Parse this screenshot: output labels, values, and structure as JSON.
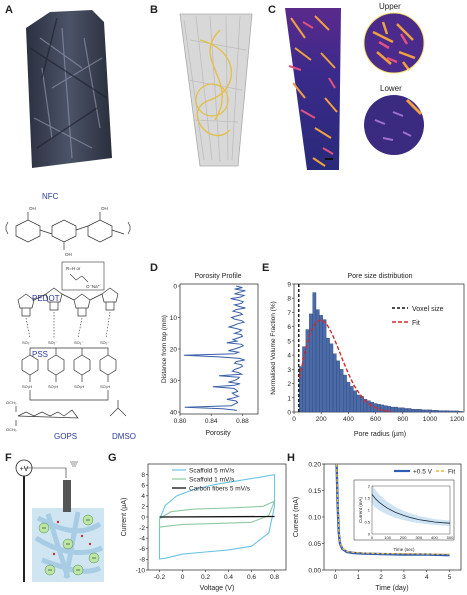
{
  "panels": {
    "A": "A",
    "B": "B",
    "C": "C",
    "D": "D",
    "E": "E",
    "F": "F",
    "G": "G",
    "H": "H"
  },
  "panel_c": {
    "upper_label": "Upper",
    "lower_label": "Lower"
  },
  "chemistry": {
    "nfc": "NFC",
    "pedot": "PEDOT",
    "pss": "PSS",
    "gops": "GOPS",
    "dmso": "DMSO",
    "side_group": "R=H or",
    "oh": "OH",
    "ona": "O⁻Na⁺",
    "so3h": "SO₃H",
    "so3": "SO₃⁻",
    "och3": "OCH₃"
  },
  "colors": {
    "label_blue": "#2a3a9a",
    "bar_blue": "#4a6aa8",
    "fit_red": "#d42a2a",
    "cv_light": "#6cc3e6",
    "cv_green": "#8fc9a3",
    "h_line": "#2d5eb5",
    "h_fit": "#f0b43a"
  },
  "icons": [
    "voltmeter-icon",
    "ground-electrode-icon",
    "ion-icon"
  ],
  "electrode": {
    "voltage_label": "+V"
  },
  "chart_data": [
    {
      "id": "D",
      "type": "line",
      "title": "Porosity Profile",
      "xlabel": "Porosity",
      "ylabel": "Distance from top (mm)",
      "xlim": [
        0.8,
        0.9
      ],
      "ylim": [
        40,
        0
      ],
      "xticks": [
        "0.80",
        "0.84",
        "0.88"
      ],
      "yticks": [
        "0",
        "10",
        "20",
        "30",
        "40"
      ],
      "x": [
        0.872,
        0.88,
        0.87,
        0.884,
        0.876,
        0.87,
        0.882,
        0.878,
        0.865,
        0.875,
        0.881,
        0.879,
        0.87,
        0.876,
        0.884,
        0.872,
        0.868,
        0.877,
        0.88,
        0.873,
        0.866,
        0.87,
        0.879,
        0.882,
        0.874,
        0.869,
        0.863,
        0.872,
        0.879,
        0.876,
        0.87,
        0.879,
        0.88,
        0.874,
        0.868,
        0.873,
        0.86,
        0.879,
        0.881,
        0.876,
        0.87,
        0.862,
        0.875,
        0.87,
        0.805,
        0.85,
        0.876,
        0.883,
        0.872,
        0.87,
        0.879,
        0.88,
        0.876,
        0.87,
        0.867,
        0.875,
        0.879,
        0.85,
        0.876,
        0.874,
        0.87,
        0.862,
        0.877,
        0.87,
        0.842,
        0.869,
        0.872,
        0.874,
        0.867,
        0.87,
        0.875,
        0.869,
        0.86,
        0.872,
        0.874,
        0.87,
        0.866,
        0.806,
        0.855,
        0.873
      ],
      "y": [
        0,
        0.5,
        1,
        1.5,
        2,
        2.5,
        3,
        3.5,
        4,
        4.5,
        5,
        5.5,
        6,
        6.5,
        7,
        7.5,
        8,
        8.5,
        9,
        9.5,
        10,
        10.5,
        11,
        11.5,
        12,
        12.5,
        13,
        13.5,
        14,
        14.5,
        15,
        15.5,
        16,
        16.5,
        17,
        17.5,
        18,
        18.5,
        19,
        19.5,
        20,
        20.5,
        21,
        21.5,
        22,
        22.5,
        23,
        23.5,
        24,
        24.5,
        25,
        25.5,
        26,
        26.5,
        27,
        27.5,
        28,
        28.5,
        29,
        29.5,
        30,
        30.5,
        31,
        31.5,
        32,
        32.5,
        33,
        33.5,
        34,
        34.5,
        35,
        35.5,
        36,
        36.5,
        37,
        37.5,
        38,
        38.5,
        39,
        39.5
      ]
    },
    {
      "id": "E",
      "type": "bar",
      "title": "Pore size distribution",
      "xlabel": "Pore radius (µm)",
      "ylabel": "Normalised Volume Fraction (%)",
      "xlim": [
        0,
        1250
      ],
      "ylim": [
        0,
        9
      ],
      "xticks": [
        "0",
        "200",
        "400",
        "600",
        "800",
        "1000",
        "1200"
      ],
      "yticks": [
        "0",
        "1",
        "2",
        "3",
        "4",
        "5",
        "6",
        "7",
        "8",
        "9"
      ],
      "legend": [
        "Voxel size",
        "Fit"
      ],
      "voxel_size": 35,
      "bin_width": 25,
      "bin_starts": [
        37,
        62,
        87,
        112,
        137,
        162,
        187,
        212,
        237,
        262,
        287,
        312,
        337,
        362,
        387,
        412,
        437,
        462,
        487,
        512,
        537,
        562,
        587,
        612,
        637,
        662,
        687,
        712,
        737,
        762,
        787,
        812,
        837,
        862,
        887,
        912,
        937,
        962,
        987,
        1012,
        1037,
        1062,
        1087,
        1112,
        1137,
        1162,
        1187,
        1212
      ],
      "values": [
        3.2,
        4.6,
        5.8,
        6.9,
        8.4,
        7.2,
        6.8,
        6.5,
        5.2,
        4.8,
        4.1,
        3.6,
        3.0,
        2.6,
        2.1,
        1.8,
        1.5,
        1.2,
        1.1,
        0.9,
        0.8,
        0.7,
        0.6,
        0.55,
        0.5,
        0.45,
        0.4,
        0.35,
        0.35,
        0.3,
        0.3,
        0.25,
        0.25,
        0.2,
        0.2,
        0.2,
        0.15,
        0.15,
        0.15,
        0.12,
        0.12,
        0.1,
        0.1,
        0.1,
        0.08,
        0.08,
        0.08,
        0.05
      ],
      "fit_x": [
        40,
        80,
        120,
        160,
        200,
        240,
        280,
        320,
        360,
        400,
        440,
        480,
        520,
        560,
        600,
        640,
        680,
        720
      ],
      "fit_y": [
        2.4,
        4.2,
        5.6,
        6.3,
        6.5,
        6.2,
        5.5,
        4.6,
        3.6,
        2.7,
        1.9,
        1.3,
        0.8,
        0.5,
        0.3,
        0.15,
        0.08,
        0.03
      ]
    },
    {
      "id": "G",
      "type": "line",
      "xlabel": "Voltage (V)",
      "ylabel": "Current (µA)",
      "xlim": [
        -0.3,
        0.9
      ],
      "ylim": [
        -10,
        10
      ],
      "xticks": [
        "-0.2",
        "0",
        "0.2",
        "0.4",
        "0.6",
        "0.8"
      ],
      "yticks": [
        "-10",
        "-8",
        "-6",
        "-4",
        "-2",
        "0",
        "2",
        "4",
        "6",
        "8"
      ],
      "legend": [
        "Scaffold 5 mV/s",
        "Scaffold 1 mV/s",
        "Carbon fibers 5 mV/s"
      ],
      "series": [
        {
          "name": "Scaffold 5 mV/s",
          "x": [
            -0.2,
            -0.15,
            -0.05,
            0.1,
            0.3,
            0.5,
            0.7,
            0.8,
            0.8,
            0.75,
            0.6,
            0.4,
            0.2,
            0.0,
            -0.15,
            -0.2,
            -0.2
          ],
          "y": [
            -0.5,
            2.2,
            4.0,
            5.2,
            6.2,
            6.9,
            7.6,
            8.0,
            2.0,
            -3.0,
            -5.5,
            -6.2,
            -6.6,
            -7.0,
            -7.8,
            -7.9,
            -0.5
          ]
        },
        {
          "name": "Scaffold 1 mV/s",
          "x": [
            -0.2,
            -0.1,
            0.1,
            0.4,
            0.7,
            0.8,
            0.75,
            0.6,
            0.3,
            0.0,
            -0.2,
            -0.2
          ],
          "y": [
            -0.3,
            1.0,
            1.5,
            1.7,
            2.0,
            3.0,
            0.3,
            -1.0,
            -1.2,
            -1.4,
            -1.9,
            -0.3
          ]
        },
        {
          "name": "Carbon fibers 5 mV/s",
          "x": [
            -0.2,
            0.8
          ],
          "y": [
            0.0,
            0.1
          ]
        }
      ]
    },
    {
      "id": "H",
      "type": "line",
      "xlabel": "Time (day)",
      "ylabel": "Current (mA)",
      "xlim": [
        -0.5,
        5.5
      ],
      "ylim": [
        0,
        0.2
      ],
      "xticks": [
        "0",
        "1",
        "2",
        "3",
        "4",
        "5"
      ],
      "yticks": [
        "0.00",
        "0.05",
        "0.10",
        "0.15",
        "0.20"
      ],
      "legend": [
        "+0.5 V",
        "Fit"
      ],
      "series": [
        {
          "name": "+0.5 V",
          "x": [
            0.05,
            0.1,
            0.15,
            0.2,
            0.3,
            0.5,
            0.8,
            1.2,
            2,
            3,
            4,
            5
          ],
          "y": [
            0.2,
            0.12,
            0.07,
            0.05,
            0.04,
            0.034,
            0.032,
            0.031,
            0.03,
            0.029,
            0.029,
            0.028
          ]
        },
        {
          "name": "Fit",
          "x": [
            0.05,
            0.1,
            0.15,
            0.2,
            0.3,
            0.5,
            0.8,
            1.2,
            2,
            3,
            4,
            5
          ],
          "y": [
            0.2,
            0.125,
            0.075,
            0.052,
            0.041,
            0.035,
            0.033,
            0.032,
            0.031,
            0.031,
            0.03,
            0.03
          ]
        }
      ],
      "inset": {
        "xlabel": "Time (sec)",
        "ylabel": "Current (mA)",
        "xlim": [
          0,
          500
        ],
        "ylim": [
          0,
          2
        ],
        "xticks": [
          "0",
          "100",
          "200",
          "300",
          "400",
          "500"
        ],
        "yticks": [
          "0",
          "0.5",
          "1",
          "1.5",
          "2"
        ],
        "x": [
          0,
          25,
          50,
          75,
          100,
          150,
          200,
          250,
          300,
          350,
          400,
          450,
          500
        ],
        "y": [
          1.65,
          1.45,
          1.3,
          1.18,
          1.07,
          0.9,
          0.78,
          0.68,
          0.6,
          0.55,
          0.5,
          0.47,
          0.45
        ]
      }
    }
  ]
}
